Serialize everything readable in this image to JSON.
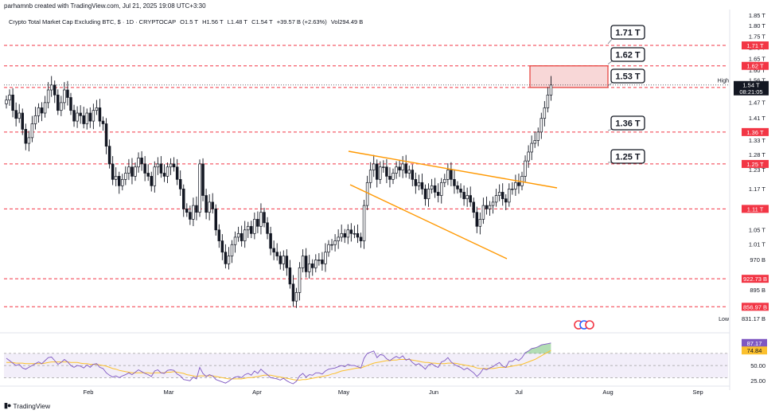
{
  "header": {
    "credit": "parhamnb created with TradingView.com, Jul 21, 2025 19:08 UTC+3:30",
    "symbol": "Crypto Total Market Cap Excluding BTC, $ · 1D · CRYPTOCAP",
    "open": "O1.5 T",
    "high": "H1.56 T",
    "low": "L1.48 T",
    "close": "C1.54 T",
    "change": "+39.57 B (+2.63%)",
    "volume": "Vol294.49 B"
  },
  "footer": {
    "brand": "TradingView",
    "logo": "tradingview-logo-icon"
  },
  "colors": {
    "bullish": "#ffffff",
    "bearish": "#131722",
    "level_line": "#f23645",
    "trendline": "#ff9800",
    "rsi_line": "#7e57c2",
    "rsi_ma": "#fbc02d",
    "zone_fill": "#f8d7d7",
    "zone_border": "#e53935"
  },
  "chart_data": [
    {
      "type": "candlestick",
      "title": "Crypto Total Market Cap Excluding BTC, $ · 1D · CRYPTOCAP",
      "x_tick_labels": [
        "Feb",
        "Mar",
        "Apr",
        "May",
        "Jun",
        "Jul",
        "Aug",
        "Sep"
      ],
      "y_tick_labels": [
        "1.85 T",
        "1.80 T",
        "1.75 T",
        "1.70 T",
        "1.65 T",
        "1.60 T",
        "1.56 T",
        "1.47 T",
        "1.41 T",
        "1.33 T",
        "1.28 T",
        "1.23 T",
        "1.17 T",
        "1.11 T",
        "1.05 T",
        "1.01 T",
        "970 B",
        "895 B",
        "831.17 B"
      ],
      "y_scale": "log",
      "ylim": [
        0.8,
        1.88
      ],
      "grid": false,
      "series": [
        {
          "name": "",
          "ohlc_start": "2025-01-01",
          "close": [
            1.48,
            1.5,
            1.44,
            1.41,
            1.43,
            1.37,
            1.32,
            1.34,
            1.39,
            1.42,
            1.45,
            1.43,
            1.47,
            1.52,
            1.54,
            1.5,
            1.44,
            1.47,
            1.52,
            1.49,
            1.44,
            1.4,
            1.43,
            1.42,
            1.39,
            1.43,
            1.4,
            1.44,
            1.45,
            1.4,
            1.39,
            1.31,
            1.25,
            1.2,
            1.21,
            1.18,
            1.2,
            1.22,
            1.24,
            1.21,
            1.24,
            1.27,
            1.25,
            1.22,
            1.21,
            1.18,
            1.24,
            1.25,
            1.22,
            1.21,
            1.24,
            1.25,
            1.24,
            1.2,
            1.17,
            1.11,
            1.1,
            1.08,
            1.12,
            1.1,
            1.25,
            1.15,
            1.1,
            1.13,
            1.11,
            1.05,
            1.02,
            0.99,
            0.96,
            0.98,
            1.01,
            1.03,
            1.04,
            1.02,
            1.05,
            1.06,
            1.04,
            1.08,
            1.06,
            1.1,
            1.07,
            1.04,
            1.0,
            0.99,
            0.98,
            0.96,
            0.98,
            0.95,
            0.91,
            0.87,
            0.89,
            0.95,
            0.98,
            0.94,
            0.96,
            0.95,
            0.97,
            0.97,
            0.96,
            0.99,
            1.01,
            1.01,
            1.02,
            1.03,
            1.04,
            1.03,
            1.05,
            1.04,
            1.04,
            1.03,
            1.02,
            1.12,
            1.19,
            1.23,
            1.25,
            1.2,
            1.24,
            1.24,
            1.21,
            1.2,
            1.22,
            1.24,
            1.23,
            1.25,
            1.22,
            1.23,
            1.2,
            1.18,
            1.19,
            1.17,
            1.14,
            1.17,
            1.18,
            1.16,
            1.15,
            1.19,
            1.2,
            1.23,
            1.2,
            1.18,
            1.17,
            1.16,
            1.14,
            1.15,
            1.13,
            1.1,
            1.06,
            1.08,
            1.12,
            1.11,
            1.12,
            1.13,
            1.15,
            1.16,
            1.14,
            1.13,
            1.17,
            1.17,
            1.19,
            1.18,
            1.21,
            1.26,
            1.29,
            1.32,
            1.33,
            1.36,
            1.41,
            1.45,
            1.5,
            1.54
          ],
          "candle_count_note": ""
        }
      ],
      "horizontal_levels": [
        {
          "label": "1.71 T",
          "value": 1.71
        },
        {
          "label": "1.62 T",
          "value": 1.62
        },
        {
          "label": "1.53 T",
          "value": 1.53
        },
        {
          "label": "1.36 T",
          "value": 1.36
        },
        {
          "label": "1.25 T",
          "value": 1.25
        },
        {
          "label": "1.11 T",
          "value": 1.11
        },
        {
          "label": "922.73 B",
          "value": 0.92273
        },
        {
          "label": "856.97 B",
          "value": 0.85697
        }
      ],
      "annotations": [
        "1.71 T",
        "1.62 T",
        "1.53 T",
        "1.36 T",
        "1.25 T"
      ],
      "price_labels": {
        "high_label": "High",
        "high_value": "1.56 T",
        "last_value": "1.54 T",
        "countdown": "08:21:05",
        "low_label": "Low",
        "low_value": "831.17 B"
      },
      "resistance_zone": {
        "from": 1.53,
        "to": 1.62
      }
    },
    {
      "type": "line",
      "title": "",
      "y_tick_labels": [
        "87.17",
        "74.84",
        "50.00",
        "25.00"
      ],
      "ylim": [
        20,
        100
      ],
      "band": [
        30,
        70
      ],
      "series": [
        {
          "name": "",
          "last": 87.17,
          "values": [
            62,
            58,
            54,
            50,
            52,
            46,
            44,
            47,
            50,
            53,
            56,
            53,
            58,
            63,
            64,
            58,
            52,
            55,
            60,
            56,
            50,
            47,
            50,
            49,
            46,
            51,
            47,
            52,
            53,
            47,
            45,
            38,
            34,
            31,
            33,
            30,
            33,
            35,
            38,
            35,
            39,
            43,
            40,
            37,
            35,
            32,
            41,
            43,
            38,
            37,
            42,
            43,
            42,
            36,
            33,
            27,
            26,
            25,
            31,
            28,
            47,
            37,
            32,
            35,
            33,
            27,
            25,
            23,
            21,
            24,
            28,
            31,
            32,
            30,
            35,
            37,
            34,
            41,
            37,
            44,
            39,
            35,
            30,
            29,
            28,
            26,
            29,
            25,
            22,
            20,
            24,
            33,
            37,
            31,
            35,
            34,
            38,
            38,
            36,
            41,
            44,
            45,
            46,
            48,
            50,
            48,
            52,
            50,
            50,
            48,
            46,
            62,
            70,
            72,
            74,
            63,
            68,
            67,
            61,
            58,
            62,
            65,
            62,
            66,
            59,
            61,
            55,
            51,
            53,
            49,
            44,
            51,
            53,
            49,
            47,
            56,
            58,
            63,
            56,
            52,
            49,
            47,
            43,
            46,
            42,
            38,
            32,
            37,
            45,
            43,
            46,
            48,
            52,
            55,
            49,
            47,
            57,
            57,
            61,
            58,
            63,
            71,
            74,
            78,
            79,
            81,
            84,
            85,
            86,
            87.17
          ]
        },
        {
          "name": "",
          "last": 74.84,
          "values": [
            55,
            55,
            55,
            54,
            54,
            54,
            53,
            53,
            53,
            53,
            53,
            53,
            54,
            55,
            56,
            56,
            56,
            56,
            56,
            56,
            55,
            55,
            55,
            54,
            53,
            53,
            52,
            52,
            52,
            51,
            50,
            49,
            47,
            45,
            44,
            42,
            41,
            40,
            39,
            38,
            38,
            38,
            38,
            38,
            38,
            37,
            38,
            38,
            38,
            38,
            39,
            39,
            40,
            39,
            38,
            37,
            35,
            34,
            33,
            32,
            33,
            33,
            33,
            33,
            33,
            32,
            31,
            30,
            29,
            28,
            28,
            28,
            28,
            28,
            29,
            30,
            30,
            31,
            32,
            33,
            34,
            34,
            34,
            33,
            32,
            31,
            30,
            29,
            28,
            27,
            26,
            26,
            27,
            27,
            28,
            29,
            30,
            31,
            32,
            33,
            34,
            36,
            37,
            39,
            41,
            42,
            43,
            44,
            45,
            46,
            46,
            48,
            50,
            52,
            54,
            55,
            56,
            57,
            58,
            58,
            59,
            59,
            60,
            60,
            60,
            60,
            59,
            58,
            57,
            56,
            55,
            55,
            54,
            54,
            53,
            53,
            53,
            54,
            54,
            54,
            53,
            52,
            51,
            50,
            49,
            48,
            46,
            45,
            45,
            45,
            45,
            45,
            46,
            47,
            47,
            47,
            48,
            49,
            50,
            51,
            52,
            54,
            56,
            58,
            60,
            63,
            66,
            69,
            72,
            74.84
          ]
        }
      ]
    }
  ]
}
